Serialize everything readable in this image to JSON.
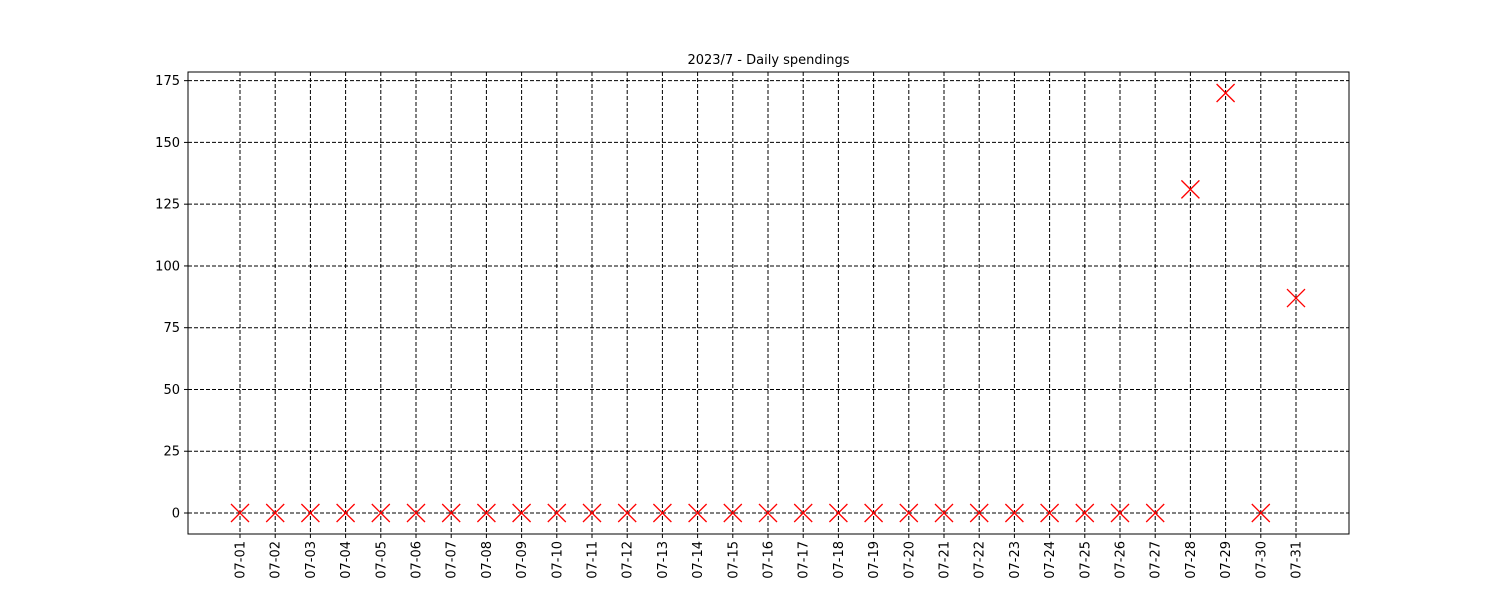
{
  "chart_data": {
    "type": "scatter",
    "title": "2023/7 - Daily spendings",
    "xlabel": "",
    "ylabel": "",
    "x": [
      "07-01",
      "07-02",
      "07-03",
      "07-04",
      "07-05",
      "07-06",
      "07-07",
      "07-08",
      "07-09",
      "07-10",
      "07-11",
      "07-12",
      "07-13",
      "07-14",
      "07-15",
      "07-16",
      "07-17",
      "07-18",
      "07-19",
      "07-20",
      "07-21",
      "07-22",
      "07-23",
      "07-24",
      "07-25",
      "07-26",
      "07-27",
      "07-28",
      "07-29",
      "07-30",
      "07-31"
    ],
    "values": [
      0,
      0,
      0,
      0,
      0,
      0,
      0,
      0,
      0,
      0,
      0,
      0,
      0,
      0,
      0,
      0,
      0,
      0,
      0,
      0,
      0,
      0,
      0,
      0,
      0,
      0,
      0,
      131,
      170,
      0,
      87
    ],
    "ylim": [
      -8.5,
      178.5
    ],
    "yticks": [
      0,
      25,
      50,
      75,
      100,
      125,
      150,
      175
    ],
    "grid": true,
    "marker": "x",
    "marker_color": "#ff0000",
    "grid_style": "dashed",
    "grid_color": "#000000"
  }
}
